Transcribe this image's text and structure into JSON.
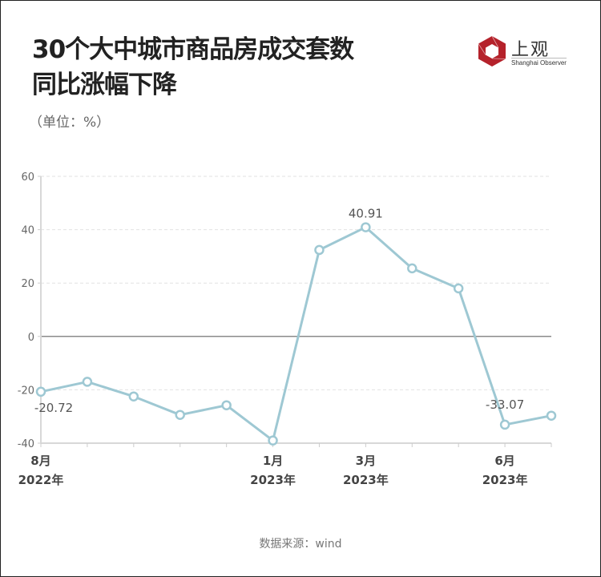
{
  "header": {
    "title_line1": "30个大中城市商品房成交套数",
    "title_line2": "同比涨幅下降",
    "unit": "（单位：%）"
  },
  "logo": {
    "name_cn": "上观",
    "name_en": "Shanghai Observer",
    "color": "#b5222b"
  },
  "footer": {
    "source": "数据来源：wind"
  },
  "chart_data": {
    "type": "line",
    "title": "30个大中城市商品房成交套数同比涨幅下降",
    "subtitle": "（单位：%）",
    "xlabel": "",
    "ylabel": "%",
    "ylim": [
      -40,
      60
    ],
    "yticks": [
      60,
      40,
      20,
      0,
      -20,
      -40
    ],
    "grid": true,
    "x": [
      "2022-08",
      "2022-09",
      "2022-10",
      "2022-11",
      "2022-12",
      "2023-01",
      "2023-02",
      "2023-03",
      "2023-04",
      "2023-05",
      "2023-06",
      "2023-07"
    ],
    "x_tick_labels": [
      {
        "index": 0,
        "month": "8月",
        "year": "2022年"
      },
      {
        "index": 5,
        "month": "1月",
        "year": "2023年"
      },
      {
        "index": 7,
        "month": "3月",
        "year": "2023年"
      },
      {
        "index": 10,
        "month": "6月",
        "year": "2023年"
      }
    ],
    "series": [
      {
        "name": "同比涨幅",
        "color": "#9ec8d3",
        "values": [
          -20.72,
          -17.0,
          -22.5,
          -29.4,
          -25.8,
          -39.0,
          32.4,
          40.91,
          25.5,
          18.0,
          -33.07,
          -29.7
        ]
      }
    ],
    "annotations": [
      {
        "index": 0,
        "label": "-20.72"
      },
      {
        "index": 7,
        "label": "40.91"
      },
      {
        "index": 10,
        "label": "-33.07"
      }
    ],
    "source": "数据来源：wind"
  }
}
